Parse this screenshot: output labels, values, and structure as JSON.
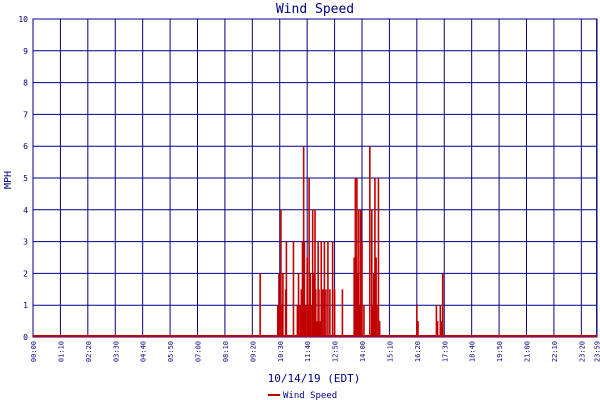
{
  "colors": {
    "grid": "#000080",
    "series": "#c00000",
    "axis_text": "#000080",
    "background": "#ffffff"
  },
  "chart_data": {
    "type": "bar",
    "title": "Wind Speed",
    "xlabel": "10/14/19 (EDT)",
    "ylabel": "MPH",
    "ylim": [
      0,
      10
    ],
    "yticks": [
      "0",
      "1",
      "2",
      "3",
      "4",
      "5",
      "6",
      "7",
      "8",
      "9",
      "10"
    ],
    "xlim": [
      "00:00",
      "24:00"
    ],
    "xticks": [
      "00:00",
      "01:10",
      "02:20",
      "03:30",
      "04:40",
      "05:50",
      "07:00",
      "08:10",
      "09:20",
      "10:30",
      "11:40",
      "12:50",
      "14:00",
      "15:10",
      "16:20",
      "17:30",
      "18:40",
      "19:50",
      "21:00",
      "22:10",
      "23:20",
      "23:59"
    ],
    "grid": true,
    "legend": {
      "position": "bottom-center",
      "entries": [
        "Wind Speed"
      ]
    },
    "series": [
      {
        "name": "Wind Speed",
        "points": [
          [
            "09:40",
            2.0
          ],
          [
            "10:25",
            1.0
          ],
          [
            "10:28",
            2.0
          ],
          [
            "10:31",
            1.0
          ],
          [
            "10:33",
            4.0
          ],
          [
            "10:36",
            1.0
          ],
          [
            "10:38",
            2.0
          ],
          [
            "10:45",
            1.5
          ],
          [
            "10:47",
            3.0
          ],
          [
            "11:05",
            3.0
          ],
          [
            "11:15",
            1.0
          ],
          [
            "11:18",
            2.0
          ],
          [
            "11:22",
            1.0
          ],
          [
            "11:25",
            1.5
          ],
          [
            "11:28",
            3.0
          ],
          [
            "11:31",
            6.0
          ],
          [
            "11:33",
            3.0
          ],
          [
            "11:36",
            1.0
          ],
          [
            "11:40",
            2.5
          ],
          [
            "11:42",
            1.0
          ],
          [
            "11:45",
            5.0
          ],
          [
            "11:48",
            2.0
          ],
          [
            "11:52",
            1.0
          ],
          [
            "11:54",
            4.0
          ],
          [
            "11:57",
            2.0
          ],
          [
            "12:00",
            4.0
          ],
          [
            "12:02",
            1.5
          ],
          [
            "12:05",
            0.5
          ],
          [
            "12:08",
            3.0
          ],
          [
            "12:10",
            1.5
          ],
          [
            "12:13",
            0.5
          ],
          [
            "12:16",
            3.0
          ],
          [
            "12:20",
            1.5
          ],
          [
            "12:24",
            3.0
          ],
          [
            "12:28",
            1.5
          ],
          [
            "12:33",
            3.0
          ],
          [
            "12:38",
            1.5
          ],
          [
            "12:45",
            3.0
          ],
          [
            "12:50",
            1.5
          ],
          [
            "13:10",
            1.5
          ],
          [
            "13:40",
            2.5
          ],
          [
            "13:43",
            5.0
          ],
          [
            "13:45",
            2.5
          ],
          [
            "13:47",
            5.0
          ],
          [
            "13:50",
            2.0
          ],
          [
            "13:52",
            4.0
          ],
          [
            "13:54",
            1.0
          ],
          [
            "13:57",
            4.0
          ],
          [
            "14:00",
            3.0
          ],
          [
            "14:05",
            1.0
          ],
          [
            "14:20",
            6.0
          ],
          [
            "14:25",
            4.0
          ],
          [
            "14:28",
            1.0
          ],
          [
            "14:30",
            2.0
          ],
          [
            "14:33",
            5.0
          ],
          [
            "14:36",
            2.5
          ],
          [
            "14:38",
            1.0
          ],
          [
            "14:42",
            5.0
          ],
          [
            "14:45",
            0.5
          ],
          [
            "16:20",
            1.0
          ],
          [
            "16:23",
            0.5
          ],
          [
            "17:10",
            1.0
          ],
          [
            "17:13",
            0.5
          ],
          [
            "17:20",
            1.0
          ],
          [
            "17:23",
            0.5
          ],
          [
            "17:26",
            2.0
          ]
        ]
      }
    ]
  }
}
